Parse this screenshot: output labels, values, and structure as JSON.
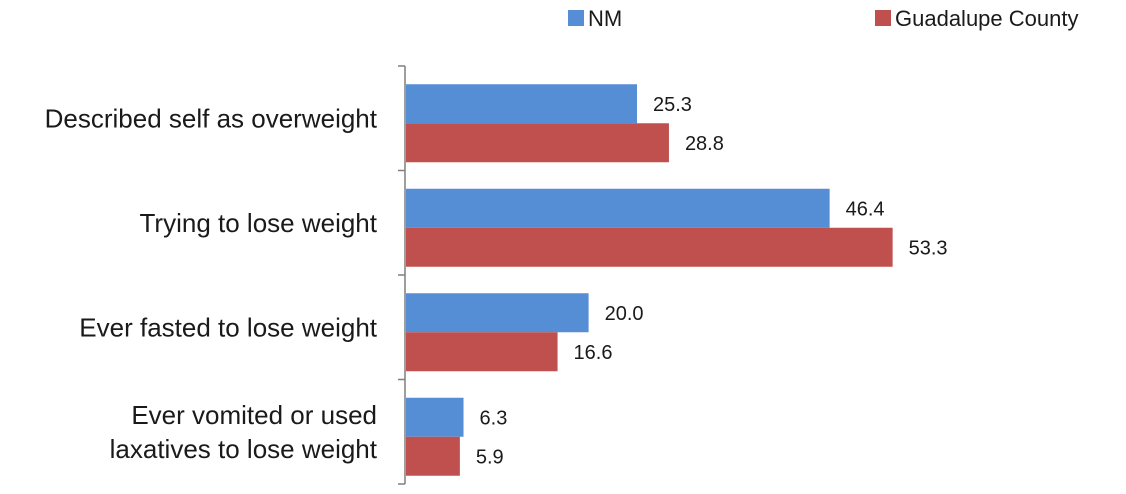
{
  "chart_data": {
    "type": "bar",
    "orientation": "horizontal",
    "categories": [
      [
        "Described self as overweight"
      ],
      [
        "Trying to lose weight"
      ],
      [
        "Ever fasted to lose weight"
      ],
      [
        "Ever vomited or used",
        "laxatives to lose weight"
      ]
    ],
    "series": [
      {
        "name": "NM",
        "color": "#558ed5",
        "values": [
          25.3,
          46.4,
          20.0,
          6.3
        ]
      },
      {
        "name": "Guadalupe County",
        "color": "#c0504d",
        "values": [
          28.8,
          53.3,
          16.6,
          5.9
        ]
      }
    ],
    "xlim": [
      0,
      60
    ],
    "value_decimals": 1,
    "grid": false,
    "legend_position": "top-right"
  }
}
